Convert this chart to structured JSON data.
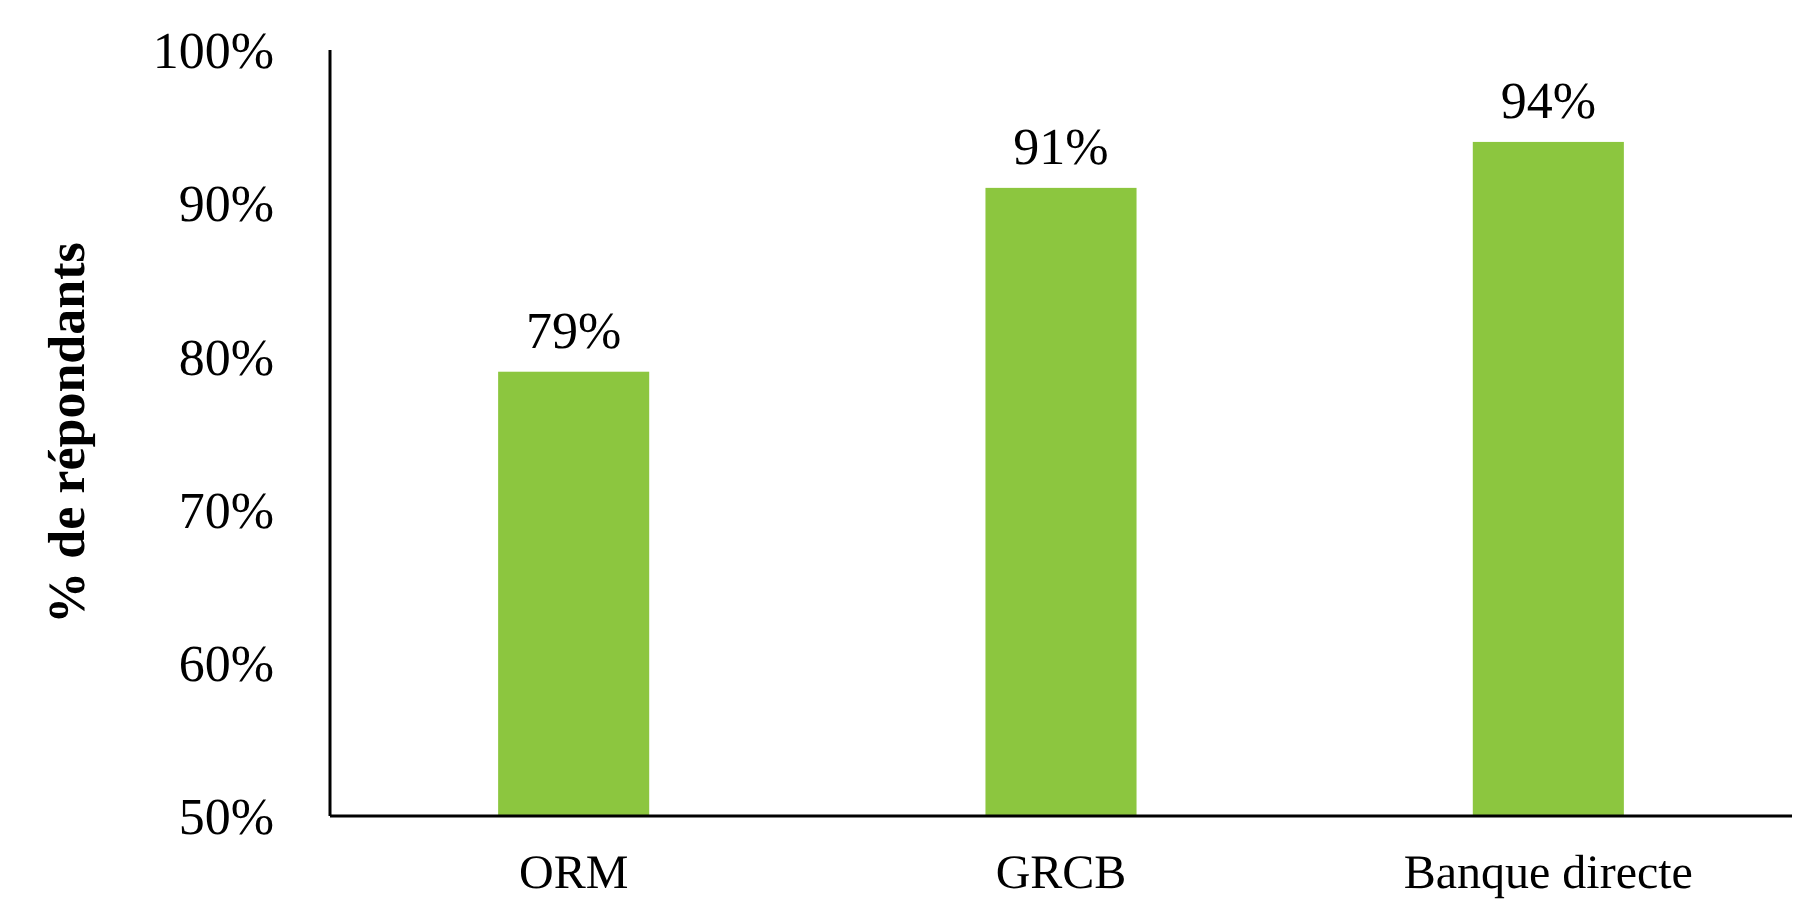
{
  "chart_data": {
    "type": "bar",
    "ylabel": "% de répondants",
    "categories": [
      "ORM",
      "GRCB",
      "Banque directe"
    ],
    "values": [
      79,
      91,
      94
    ],
    "color": "#8cc63f",
    "value_labels": [
      "79%",
      "91%",
      "94%"
    ],
    "ylim": [
      50,
      100
    ],
    "yticks": [
      {
        "value": 50,
        "label": "50%"
      },
      {
        "value": 60,
        "label": "60%"
      },
      {
        "value": 70,
        "label": "70%"
      },
      {
        "value": 80,
        "label": "80%"
      },
      {
        "value": 90,
        "label": "90%"
      },
      {
        "value": 100,
        "label": "100%"
      }
    ]
  }
}
